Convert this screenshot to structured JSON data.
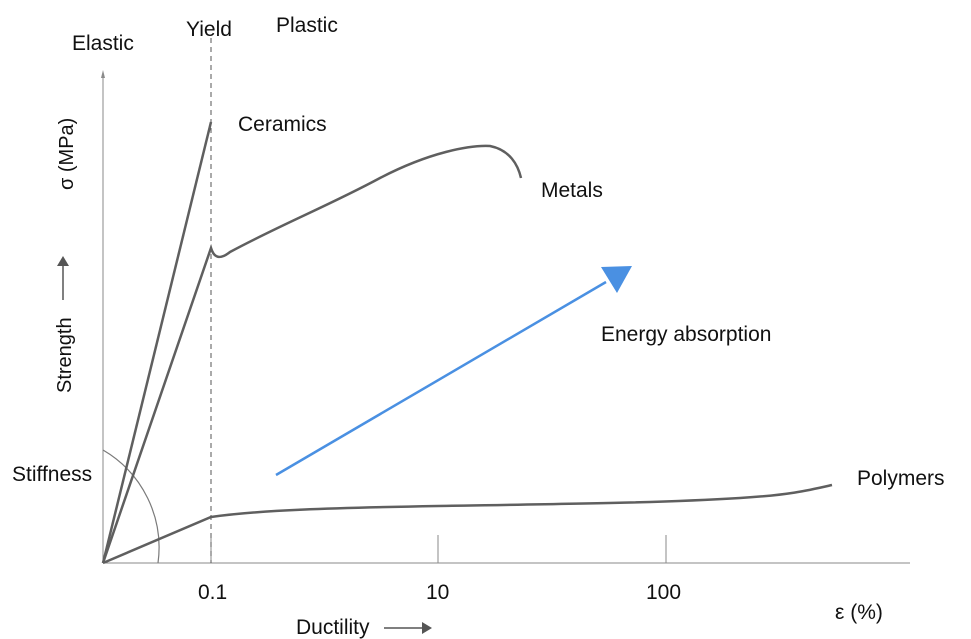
{
  "regions": {
    "elastic": "Elastic",
    "yield": "Yield",
    "plastic": "Plastic"
  },
  "axes": {
    "y_label": "σ (MPa)",
    "x_label": "ε (%)",
    "strength_label": "Strength",
    "stiffness_label": "Stiffness",
    "ductility_label": "Ductility",
    "x_ticks": [
      "0.1",
      "10",
      "100"
    ],
    "x_scale": "log"
  },
  "curves": {
    "ceramics": "Ceramics",
    "metals": "Metals",
    "polymers": "Polymers"
  },
  "energy_arrow": {
    "label": "Energy absorption",
    "color": "#4a90e2"
  },
  "colors": {
    "curve": "#5f5f5f",
    "axis": "#8a8a8a",
    "text": "#111111"
  }
}
